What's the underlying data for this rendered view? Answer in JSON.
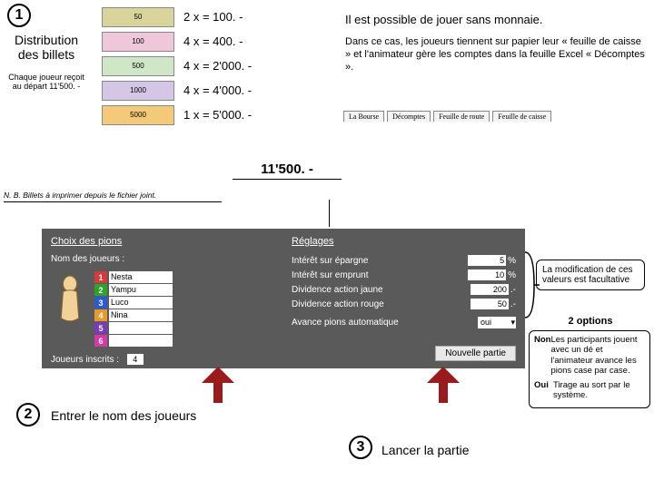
{
  "step_numbers": {
    "one": "1",
    "two": "2",
    "three": "3"
  },
  "distribution": {
    "title": "Distribution des billets",
    "sub": "Chaque joueur reçoit au départ 11'500. -",
    "nb": "N. B. Billets à imprimer depuis le fichier joint.",
    "bills": [
      {
        "denom": "50",
        "color": "#d9d49a",
        "eq": "2 x =   100. -"
      },
      {
        "denom": "100",
        "color": "#eec7d8",
        "eq": "4 x =   400. -"
      },
      {
        "denom": "500",
        "color": "#cfe7c6",
        "eq": "4 x = 2'000. -"
      },
      {
        "denom": "1000",
        "color": "#d6c6e6",
        "eq": "4 x = 4'000. -"
      },
      {
        "denom": "5000",
        "color": "#f4c97a",
        "eq": "1 x = 5'000. -"
      }
    ],
    "total": "11'500. -"
  },
  "right": {
    "line1": "Il est possible de jouer sans monnaie.",
    "line2": "Dans ce cas, les joueurs tiennent sur papier leur « feuille de caisse » et l'animateur gère les comptes dans la feuille Excel « Décomptes ».",
    "tabs": [
      "La Bourse",
      "Décomptes",
      "Feuille de route",
      "Feuille de caisse"
    ]
  },
  "panel": {
    "left_title": "Choix des pions",
    "right_title": "Réglages",
    "names_label": "Nom des joueurs :",
    "player_colors": [
      "#d63a3a",
      "#2aa52a",
      "#2a5bd6",
      "#e69a2a",
      "#7a3ab8",
      "#d43aa3"
    ],
    "players": [
      "Nesta",
      "Yampu",
      "Luco",
      "Nina",
      "",
      ""
    ],
    "inscrits_label": "Joueurs inscrits :",
    "inscrits_val": "4",
    "settings": [
      {
        "label": "Intérêt sur épargne",
        "val": "5",
        "unit": "%"
      },
      {
        "label": "Intérêt sur emprunt",
        "val": "10",
        "unit": "%"
      },
      {
        "label": "Dividence action jaune",
        "val": "200",
        "unit": ".-"
      },
      {
        "label": "Dividence action rouge",
        "val": "50",
        "unit": ".-"
      }
    ],
    "advance_label": "Avance pions automatique",
    "advance_val": "oui",
    "newgame": "Nouvelle partie"
  },
  "modbox": "La modification de ces valeurs est facultative",
  "options": {
    "title": "2 options",
    "non_k": "Non",
    "non_v": "Les participants jouent avec un dé et l'animateur avance les pions case par case.",
    "oui_k": "Oui",
    "oui_v": "Tirage au sort par le système."
  },
  "step2_label": "Entrer le nom des joueurs",
  "step3_label": "Lancer la partie"
}
